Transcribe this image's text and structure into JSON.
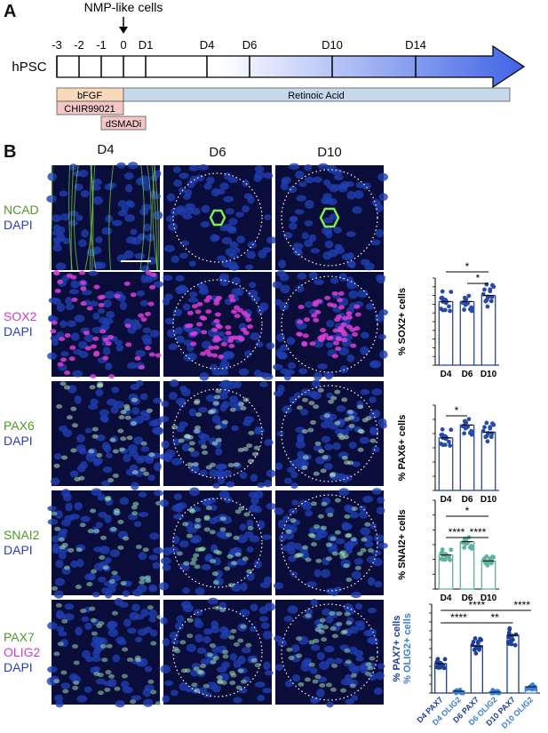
{
  "panelA": {
    "letter": "A",
    "arrow_label": "NMP-like cells",
    "start_label": "hPSC",
    "ticks": [
      "-3",
      "-2",
      "-1",
      "0",
      "D1",
      "D4",
      "D6",
      "D10",
      "D14"
    ],
    "bars": {
      "bfgf": "bFGF",
      "chir": "CHIR99021",
      "dsmadi": "dSMADi",
      "ra": "Retinoic Acid"
    }
  },
  "panelB": {
    "letter": "B",
    "columns": [
      "D4",
      "D6",
      "D10"
    ],
    "rows": [
      {
        "markers": [
          {
            "text": "NCAD",
            "color": "#4f9a2a"
          },
          {
            "text": "DAPI",
            "color": "#2a3fb5"
          }
        ]
      },
      {
        "markers": [
          {
            "text": "SOX2",
            "color": "#d03ad0"
          },
          {
            "text": "DAPI",
            "color": "#2a3fb5"
          }
        ]
      },
      {
        "markers": [
          {
            "text": "PAX6",
            "color": "#4f9a2a"
          },
          {
            "text": "DAPI",
            "color": "#2a3fb5"
          }
        ]
      },
      {
        "markers": [
          {
            "text": "SNAI2",
            "color": "#4f9a2a"
          },
          {
            "text": "DAPI",
            "color": "#2a3fb5"
          }
        ]
      },
      {
        "markers": [
          {
            "text": "PAX7",
            "color": "#4f9a2a"
          },
          {
            "text": "OLIG2",
            "color": "#d03ad0"
          },
          {
            "text": "DAPI",
            "color": "#2a3fb5"
          }
        ]
      }
    ]
  },
  "chart_data": [
    {
      "type": "bar",
      "ylabel": "% SOX2+ cells",
      "categories": [
        "D4",
        "D6",
        "D10"
      ],
      "values": [
        73,
        73,
        80
      ],
      "ylim": [
        0,
        100
      ],
      "yticks": [
        0,
        10,
        20,
        30,
        40,
        50,
        60,
        70,
        80,
        90,
        100
      ],
      "color": "#2a4aa8",
      "significance": [
        {
          "from": "D4",
          "to": "D10",
          "label": "*"
        },
        {
          "from": "D6",
          "to": "D10",
          "label": "*"
        }
      ]
    },
    {
      "type": "bar",
      "ylabel": "% PAX6+ cells",
      "categories": [
        "D4",
        "D6",
        "D10"
      ],
      "values": [
        37,
        46,
        41
      ],
      "ylim": [
        0,
        60
      ],
      "yticks": [
        0,
        10,
        20,
        30,
        40,
        50,
        60
      ],
      "color": "#2a4aa8",
      "significance": [
        {
          "from": "D4",
          "to": "D6",
          "label": "*"
        }
      ]
    },
    {
      "type": "bar",
      "ylabel": "% SNAI2+ cells",
      "categories": [
        "D4",
        "D6",
        "D10"
      ],
      "values": [
        23,
        32,
        19
      ],
      "ylim": [
        0,
        60
      ],
      "yticks": [
        0,
        10,
        20,
        30,
        40,
        50,
        60
      ],
      "color": "#5fb2a2",
      "significance": [
        {
          "from": "D4",
          "to": "D10",
          "label": "*"
        },
        {
          "from": "D4",
          "to": "D6",
          "label": "****"
        },
        {
          "from": "D6",
          "to": "D10",
          "label": "****"
        }
      ]
    },
    {
      "type": "bar",
      "ylabel_parts": [
        {
          "text": "% PAX7+ cells",
          "color": "#1f3f99"
        },
        {
          "text": "% OLIG2+ cells",
          "color": "#3b7fd6"
        }
      ],
      "categories": [
        "D4 PAX7",
        "D4 OLIG2",
        "D6 PAX7",
        "D6 OLIG2",
        "D10 PAX7",
        "D10 OLIG2"
      ],
      "category_colors": [
        "#1f3f99",
        "#3b7fd6",
        "#1f3f99",
        "#3b7fd6",
        "#1f3f99",
        "#3b7fd6"
      ],
      "values": [
        33,
        2,
        53,
        1,
        65,
        7
      ],
      "ylim": [
        0,
        100
      ],
      "yticks": [
        0,
        10,
        20,
        30,
        40,
        50,
        60,
        70,
        80,
        90,
        100
      ],
      "significance": [
        {
          "from": "D4 PAX7",
          "to": "D10 PAX7",
          "label": "****"
        },
        {
          "from": "D4 PAX7",
          "to": "D6 PAX7",
          "label": "****"
        },
        {
          "from": "D6 PAX7",
          "to": "D10 PAX7",
          "label": "**"
        },
        {
          "from": "D10 PAX7",
          "to": "D10 OLIG2",
          "label": "****"
        }
      ]
    }
  ]
}
